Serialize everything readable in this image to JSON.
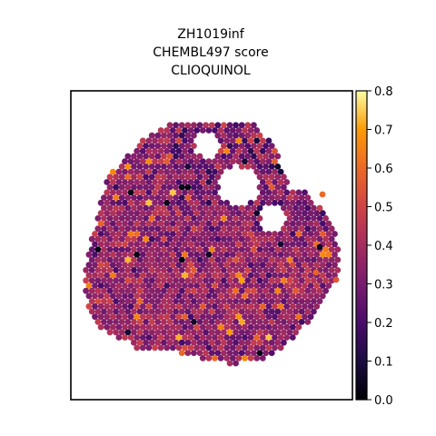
{
  "chart_data": {
    "type": "scatter",
    "title_lines": [
      "ZH1019inf",
      "CHEMBL497 score",
      "CLIOQUINOL"
    ],
    "xlabel": "",
    "ylabel": "",
    "colorbar": {
      "colormap": "inferno",
      "range": [
        0.0,
        0.8
      ],
      "ticks": [
        "0.0",
        "0.1",
        "0.2",
        "0.3",
        "0.4",
        "0.5",
        "0.6",
        "0.7",
        "0.8"
      ]
    },
    "grid": false,
    "points": "spatial spots on a hexagonal grid forming a roughly circular tissue section; scores mostly 0.25-0.45 with sparse high (~0.7) and low (~0.0) outliers"
  }
}
